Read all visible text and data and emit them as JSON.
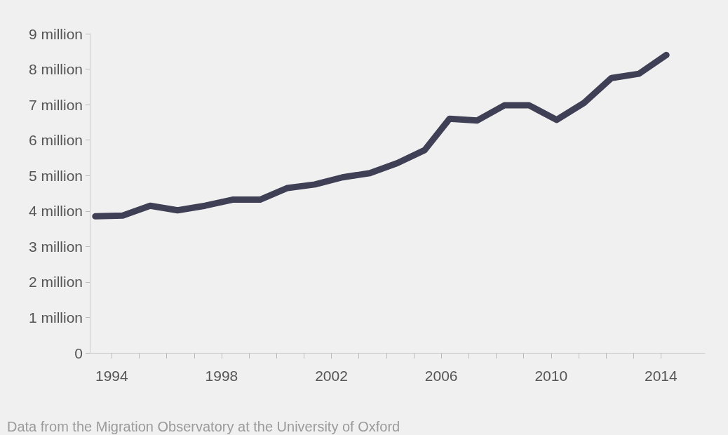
{
  "chart_data": {
    "type": "line",
    "x": [
      1993.4,
      1994.4,
      1995.4,
      1996.4,
      1997.4,
      1998.4,
      1999.4,
      2000.4,
      2001.4,
      2002.4,
      2003.4,
      2004.4,
      2005.4,
      2006.3,
      2007.3,
      2008.3,
      2009.2,
      2010.2,
      2011.2,
      2012.2,
      2013.2,
      2014.2
    ],
    "series": [
      {
        "color": "#3f3f55",
        "values": [
          3.85,
          3.87,
          4.15,
          4.02,
          4.15,
          4.32,
          4.32,
          4.65,
          4.75,
          4.95,
          5.07,
          5.35,
          5.72,
          6.6,
          6.55,
          6.98,
          6.98,
          6.57,
          7.05,
          7.75,
          7.87,
          8.4
        ]
      }
    ],
    "xlim": [
      1993.2,
      2015.6
    ],
    "xticks": [
      1994,
      {
        "value": 1995,
        "label": null
      },
      {
        "value": 1996,
        "label": null
      },
      {
        "value": 1997,
        "label": null
      },
      1998,
      {
        "value": 1999,
        "label": null
      },
      {
        "value": 2000,
        "label": null
      },
      {
        "value": 2001,
        "label": null
      },
      2002,
      {
        "value": 2003,
        "label": null
      },
      {
        "value": 2004,
        "label": null
      },
      {
        "value": 2005,
        "label": null
      },
      2006,
      {
        "value": 2007,
        "label": null
      },
      {
        "value": 2008,
        "label": null
      },
      {
        "value": 2009,
        "label": null
      },
      2010,
      {
        "value": 2011,
        "label": null
      },
      {
        "value": 2012,
        "label": null
      },
      {
        "value": 2013,
        "label": null
      },
      2014
    ],
    "ylim": [
      0,
      9
    ],
    "yticks": [
      {
        "value": 0,
        "label": "0"
      },
      {
        "value": 1,
        "label": "1 million"
      },
      {
        "value": 2,
        "label": "2 million"
      },
      {
        "value": 3,
        "label": "3 million"
      },
      {
        "value": 4,
        "label": "4 million"
      },
      {
        "value": 5,
        "label": "5 million"
      },
      {
        "value": 6,
        "label": "6 million"
      },
      {
        "value": 7,
        "label": "7 million"
      },
      {
        "value": 8,
        "label": "8 million"
      },
      {
        "value": 9,
        "label": "9 million"
      }
    ],
    "grid": false,
    "line_style": "solid",
    "annotations": [
      "Data from the Migration Observatory at the University of Oxford"
    ]
  }
}
